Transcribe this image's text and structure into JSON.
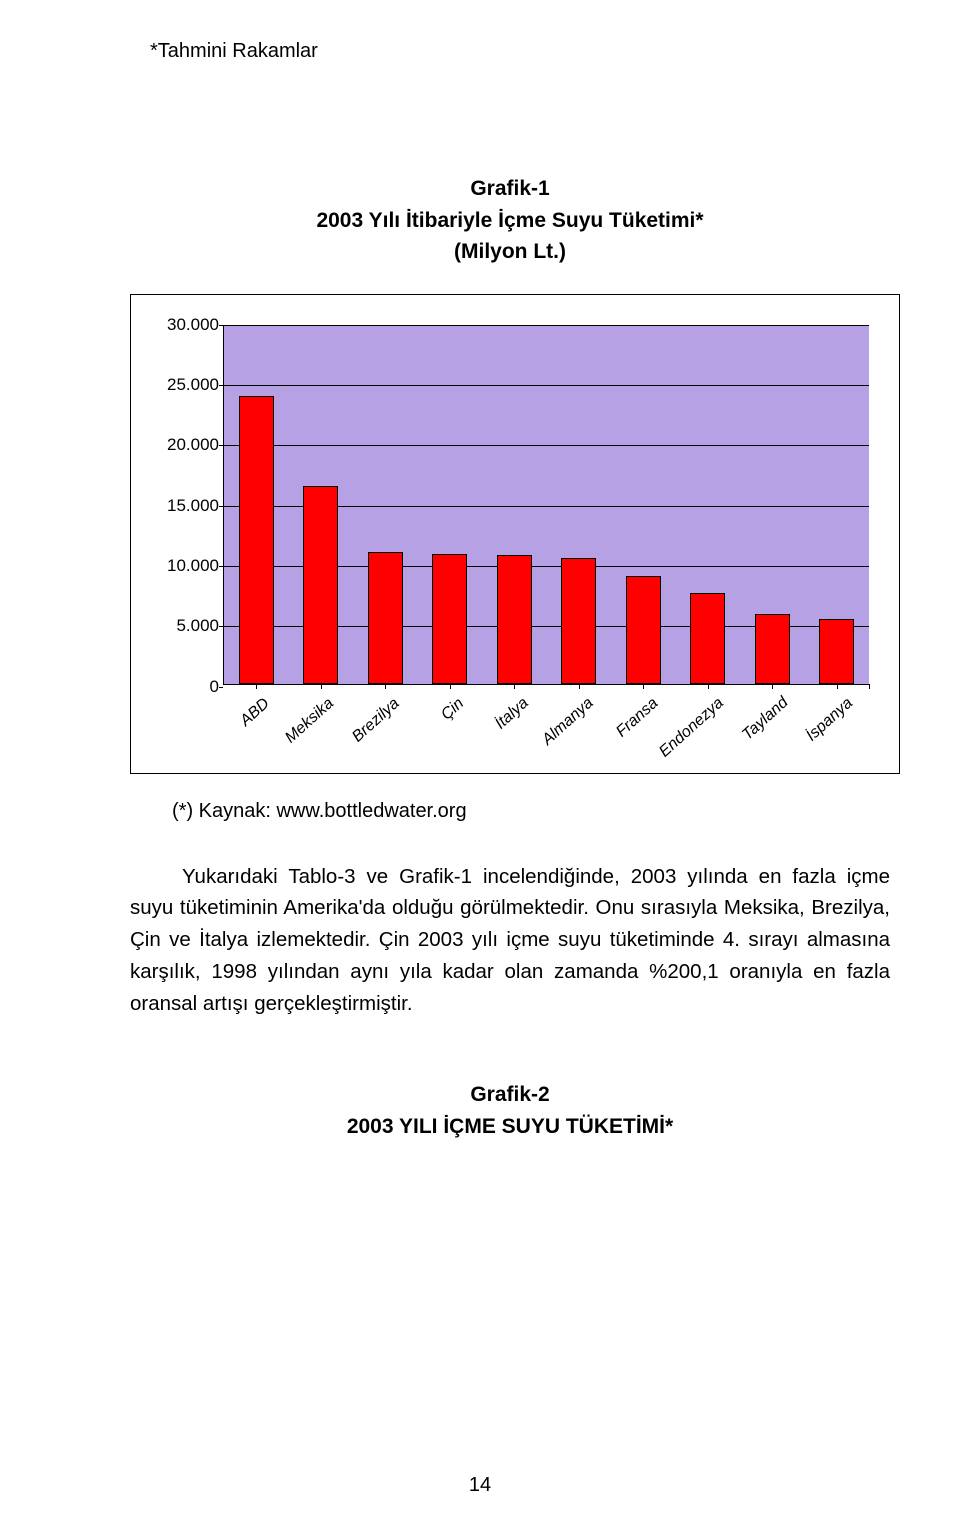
{
  "header_note": "*Tahmini Rakamlar",
  "chart1_title_l1": "Grafik-1",
  "chart1_title_l2": "2003 Yılı İtibariyle İçme Suyu Tüketimi*",
  "chart1_title_l3": "(Milyon Lt.)",
  "chart": {
    "ymax": 30000,
    "ytick_step": 5000,
    "ylabels": [
      "0",
      "5.000",
      "10.000",
      "15.000",
      "20.000",
      "25.000",
      "30.000"
    ],
    "plot_bg": "#b7a1e5",
    "bar_color": "#ff0000",
    "categories": [
      "ABD",
      "Meksika",
      "Brezilya",
      "Çin",
      "İtalya",
      "Almanya",
      "Fransa",
      "Endonezya",
      "Tayland",
      "İspanya"
    ],
    "values": [
      24000,
      16500,
      11000,
      10800,
      10700,
      10500,
      9000,
      7600,
      5800,
      5400
    ]
  },
  "source_label": "(*) Kaynak: www.bottledwater.org",
  "paragraph": "Yukarıdaki Tablo-3 ve Grafik-1  incelendiğinde, 2003 yılında en fazla içme suyu tüketiminin Amerika'da olduğu görülmektedir. Onu sırasıyla Meksika, Brezilya, Çin ve İtalya izlemektedir. Çin 2003 yılı içme suyu tüketiminde 4. sırayı almasına karşılık, 1998 yılından aynı yıla kadar olan zamanda %200,1 oranıyla en fazla oransal artışı gerçekleştirmiştir.",
  "chart2_title_l1": "Grafik-2",
  "chart2_title_l2": "2003 YILI İÇME SUYU TÜKETİMİ*",
  "page_number": "14"
}
